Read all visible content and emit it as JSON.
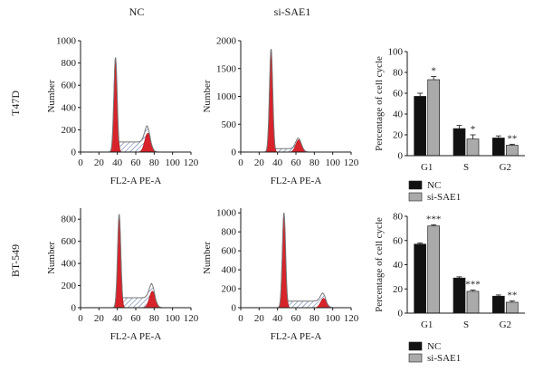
{
  "column_titles": [
    "NC",
    "si-SAE1"
  ],
  "row_labels": [
    "T47D",
    "BT-549"
  ],
  "colors": {
    "peak_fill": "#d8232a",
    "hatch": "#5a6fa8",
    "envelope": "#777777",
    "nc_bar": "#111111",
    "si_bar": "#aaaaaa",
    "axis": "#1a1a1a"
  },
  "chart_data": [
    {
      "type": "area",
      "panel": "T47D-NC",
      "xlabel": "FL2-A PE-A",
      "ylabel": "Number",
      "xlim": [
        0,
        120
      ],
      "ylim": [
        0,
        1000
      ],
      "xticks": [
        0,
        20,
        40,
        60,
        80,
        100,
        120
      ],
      "yticks": [
        0,
        200,
        400,
        600,
        800,
        1000
      ],
      "g1_peak": {
        "x": 38,
        "y": 850
      },
      "g2_peak": {
        "x": 73,
        "y": 170
      },
      "s_plateau_y": 90
    },
    {
      "type": "area",
      "panel": "T47D-siSAE1",
      "xlabel": "FL2-A PE-A",
      "ylabel": "Number",
      "xlim": [
        0,
        120
      ],
      "ylim": [
        0,
        2000
      ],
      "xticks": [
        0,
        20,
        40,
        60,
        80,
        100,
        120
      ],
      "yticks": [
        0,
        500,
        1000,
        1500,
        2000
      ],
      "g1_peak": {
        "x": 33,
        "y": 1850
      },
      "g2_peak": {
        "x": 63,
        "y": 220
      },
      "s_plateau_y": 60
    },
    {
      "type": "bar",
      "panel": "T47D-bars",
      "ylabel": "Percentage of cell cycle",
      "ylim": [
        0,
        100
      ],
      "yticks": [
        0,
        20,
        40,
        60,
        80,
        100
      ],
      "categories": [
        "G1",
        "S",
        "G2"
      ],
      "series": [
        {
          "name": "NC",
          "values": [
            57,
            26,
            17
          ],
          "errors": [
            3,
            3,
            2
          ]
        },
        {
          "name": "si-SAE1",
          "values": [
            73,
            16,
            10
          ],
          "errors": [
            3,
            4,
            1
          ]
        }
      ],
      "significance": [
        "*",
        "*",
        "**"
      ],
      "legend": "bottom"
    },
    {
      "type": "area",
      "panel": "BT549-NC",
      "xlabel": "FL2-A PE-A",
      "ylabel": "Number",
      "xlim": [
        0,
        120
      ],
      "ylim": [
        0,
        900
      ],
      "xticks": [
        0,
        20,
        40,
        60,
        80,
        100,
        120
      ],
      "yticks": [
        0,
        200,
        400,
        600,
        800
      ],
      "g1_peak": {
        "x": 42,
        "y": 840
      },
      "g2_peak": {
        "x": 78,
        "y": 150
      },
      "s_plateau_y": 90
    },
    {
      "type": "area",
      "panel": "BT549-siSAE1",
      "xlabel": "FL2-A PE-A",
      "ylabel": "Number",
      "xlim": [
        0,
        120
      ],
      "ylim": [
        0,
        1050
      ],
      "xticks": [
        0,
        20,
        40,
        60,
        80,
        100,
        120
      ],
      "yticks": [
        0,
        200,
        400,
        600,
        800,
        1000
      ],
      "g1_peak": {
        "x": 47,
        "y": 1000
      },
      "g2_peak": {
        "x": 90,
        "y": 100
      },
      "s_plateau_y": 70
    },
    {
      "type": "bar",
      "panel": "BT549-bars",
      "ylabel": "Percentage of cell cycle",
      "ylim": [
        0,
        80
      ],
      "yticks": [
        0,
        20,
        40,
        60,
        80
      ],
      "categories": [
        "G1",
        "S",
        "G2"
      ],
      "series": [
        {
          "name": "NC",
          "values": [
            57,
            29,
            14
          ],
          "errors": [
            1,
            1,
            1
          ]
        },
        {
          "name": "si-SAE1",
          "values": [
            72,
            18,
            9
          ],
          "errors": [
            1,
            1,
            1
          ]
        }
      ],
      "significance": [
        "***",
        "***",
        "**"
      ],
      "legend": "bottom"
    }
  ]
}
